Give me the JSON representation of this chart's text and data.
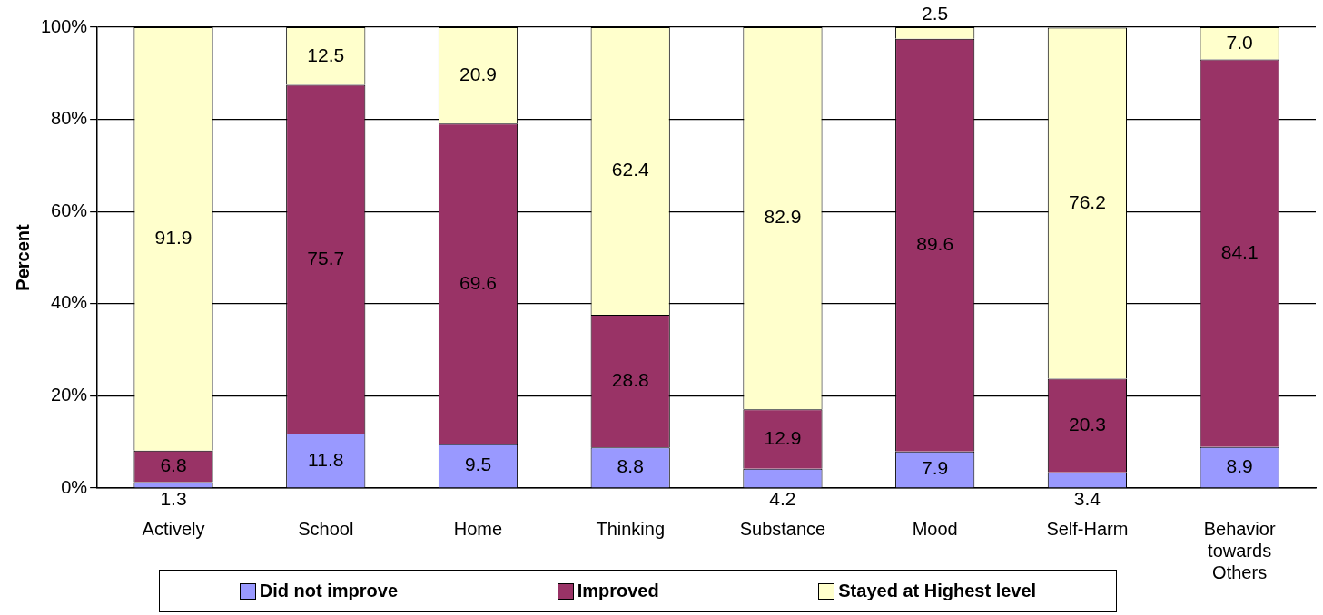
{
  "chart_data": {
    "type": "bar",
    "stacked": true,
    "ylabel": "Percent",
    "categories": [
      "Actively",
      "School",
      "Home",
      "Thinking",
      "Substance",
      "Mood",
      "Self-Harm",
      "Behavior towards Others"
    ],
    "series": [
      {
        "name": "Did not improve",
        "color": "#9999ff",
        "values": [
          1.3,
          11.8,
          9.5,
          8.8,
          4.2,
          7.9,
          3.4,
          8.9
        ],
        "value_labels": [
          "1.3",
          "11.8",
          "9.5",
          "8.8",
          "4.2",
          "7.9",
          "3.4",
          "8.9"
        ]
      },
      {
        "name": "Improved",
        "color": "#993366",
        "values": [
          6.8,
          75.7,
          69.6,
          28.8,
          12.9,
          89.6,
          20.3,
          84.1
        ],
        "value_labels": [
          "6.8",
          "75.7",
          "69.6",
          "28.8",
          "12.9",
          "89.6",
          "20.3",
          "84.1"
        ]
      },
      {
        "name": "Stayed at Highest level",
        "color": "#ffffcc",
        "values": [
          91.9,
          12.5,
          20.9,
          62.4,
          82.9,
          2.5,
          76.2,
          7.0
        ],
        "value_labels": [
          "91.9",
          "12.5",
          "20.9",
          "62.4",
          "82.9",
          "2.5",
          "76.2",
          "7.0"
        ]
      }
    ],
    "ylim": [
      0,
      100
    ],
    "yticks": [
      {
        "value": 0,
        "label": "0%"
      },
      {
        "value": 20,
        "label": "20%"
      },
      {
        "value": 40,
        "label": "40%"
      },
      {
        "value": 60,
        "label": "60%"
      },
      {
        "value": 80,
        "label": "80%"
      },
      {
        "value": 100,
        "label": "100%"
      }
    ],
    "grid": "y",
    "legend": "bottom"
  }
}
